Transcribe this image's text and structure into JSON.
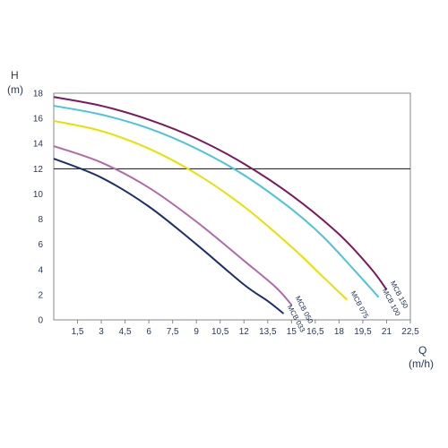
{
  "chart_data": {
    "type": "line",
    "ylabel": "H",
    "ylabel_unit": "(m)",
    "xlabel": "Q",
    "xlabel_unit": "(m/h)",
    "xlim": [
      0,
      22.5
    ],
    "ylim": [
      0,
      18
    ],
    "x_ticks": [
      "1,5",
      "3",
      "4,5",
      "6",
      "7,5",
      "9",
      "10,5",
      "12",
      "13,5",
      "15",
      "16,5",
      "18",
      "19,5",
      "21",
      "22,5"
    ],
    "x_tick_values": [
      1.5,
      3,
      4.5,
      6,
      7.5,
      9,
      10.5,
      12,
      13.5,
      15,
      16.5,
      18,
      19.5,
      21,
      22.5
    ],
    "y_ticks": [
      "0",
      "2",
      "4",
      "6",
      "8",
      "10",
      "12",
      "14",
      "16",
      "18"
    ],
    "y_tick_values": [
      0,
      2,
      4,
      6,
      8,
      10,
      12,
      14,
      16,
      18
    ],
    "reference_line_y": 12,
    "grid": false,
    "series": [
      {
        "name": "MCB 033",
        "color": "#1f2f6e",
        "x": [
          0,
          3,
          6,
          9,
          12,
          13.5,
          14.5
        ],
        "y": [
          12.8,
          11.3,
          9.0,
          6.0,
          2.8,
          1.5,
          0.5
        ]
      },
      {
        "name": "MCB 050",
        "color": "#b06aa8",
        "x": [
          0,
          3,
          6,
          9,
          12,
          14,
          15
        ],
        "y": [
          13.8,
          12.5,
          10.5,
          7.8,
          4.7,
          2.6,
          1.2
        ]
      },
      {
        "name": "MCB 075",
        "color": "#e8e000",
        "x": [
          0,
          3,
          6,
          9,
          12,
          15,
          17,
          18.5
        ],
        "y": [
          15.8,
          15.0,
          13.6,
          11.6,
          9.0,
          5.8,
          3.4,
          1.6
        ]
      },
      {
        "name": "MCB 100",
        "color": "#4cc4d8",
        "x": [
          0,
          3,
          6,
          9,
          12,
          15,
          17,
          19,
          20.5
        ],
        "y": [
          17.0,
          16.3,
          15.2,
          13.6,
          11.5,
          8.8,
          6.6,
          3.9,
          1.8
        ]
      },
      {
        "name": "MCB 150",
        "color": "#7a1a5c",
        "x": [
          0,
          3,
          6,
          9,
          12,
          15,
          18,
          20,
          21
        ],
        "y": [
          17.7,
          17.0,
          15.9,
          14.4,
          12.4,
          9.9,
          6.8,
          4.1,
          2.4
        ]
      }
    ]
  }
}
